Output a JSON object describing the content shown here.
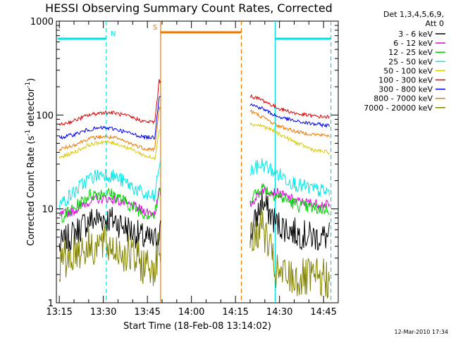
{
  "chart_data": {
    "type": "line",
    "title": "HESSI Observing Summary Count Rates, Corrected",
    "xlabel": "Start Time (18-Feb-08 13:14:02)",
    "ylabel_main": "Corrected Count Rate (s",
    "ylabel_sup1": "-1",
    "ylabel_mid": " detector",
    "ylabel_sup2": "-1",
    "ylabel_end": ")",
    "footer": "12-Mar-2010 17:34",
    "xlim": [
      0,
      96
    ],
    "ylim": [
      1,
      1000
    ],
    "yscale": "log",
    "x_ticks": [
      {
        "value": 1,
        "label": "13:15"
      },
      {
        "value": 16,
        "label": "13:30"
      },
      {
        "value": 31,
        "label": "13:45"
      },
      {
        "value": 46,
        "label": "14:00"
      },
      {
        "value": 61,
        "label": "14:15"
      },
      {
        "value": 76,
        "label": "14:30"
      },
      {
        "value": 91,
        "label": "14:45"
      }
    ],
    "y_ticks": [
      {
        "value": 1,
        "label": "1"
      },
      {
        "value": 10,
        "label": "10"
      },
      {
        "value": 100,
        "label": "100"
      },
      {
        "value": 1000,
        "label": "1000"
      }
    ],
    "legend": {
      "header1": "Det 1,3,4,5,6,9,",
      "header2": "Att 0",
      "entries": [
        "3 - 6 keV",
        "6 - 12 keV",
        "12 - 25 keV",
        "25 - 50 keV",
        "50 - 100 keV",
        "100 - 300 keV",
        "300 - 800 keV",
        "800 - 7000 keV",
        "7000 - 20000 keV"
      ]
    },
    "series": [
      {
        "name": "3 - 6 keV",
        "color": "#000000",
        "noise": 0.16,
        "points": [
          [
            1,
            4
          ],
          [
            6,
            5.5
          ],
          [
            11,
            7.5
          ],
          [
            16,
            8
          ],
          [
            20,
            7.5
          ],
          [
            25,
            6
          ],
          [
            30,
            4.8
          ],
          [
            33.5,
            4.5
          ],
          [
            35,
            6
          ],
          [
            66,
            5
          ],
          [
            70,
            12
          ],
          [
            75,
            7
          ],
          [
            82,
            5.5
          ],
          [
            88,
            5
          ],
          [
            93,
            5
          ]
        ]
      },
      {
        "name": "6 - 12 keV",
        "color": "#e000e0",
        "noise": 0.05,
        "points": [
          [
            1,
            8.5
          ],
          [
            6,
            9.5
          ],
          [
            11,
            12
          ],
          [
            16,
            13
          ],
          [
            20,
            12.5
          ],
          [
            25,
            11
          ],
          [
            30,
            9.5
          ],
          [
            33.5,
            9
          ],
          [
            35,
            15
          ],
          [
            66,
            11
          ],
          [
            70,
            16
          ],
          [
            75,
            15
          ],
          [
            82,
            12
          ],
          [
            88,
            11.5
          ],
          [
            93,
            11
          ]
        ]
      },
      {
        "name": "12 - 25 keV",
        "color": "#00d000",
        "noise": 0.07,
        "points": [
          [
            1,
            8
          ],
          [
            6,
            10
          ],
          [
            11,
            14
          ],
          [
            16,
            15
          ],
          [
            20,
            14
          ],
          [
            25,
            11
          ],
          [
            30,
            9
          ],
          [
            33.5,
            8.5
          ],
          [
            35,
            15
          ],
          [
            66,
            13
          ],
          [
            70,
            17
          ],
          [
            75,
            14
          ],
          [
            82,
            11
          ],
          [
            88,
            10
          ],
          [
            93,
            10
          ]
        ]
      },
      {
        "name": "25 - 50 keV",
        "color": "#00e8e8",
        "noise": 0.08,
        "points": [
          [
            1,
            11
          ],
          [
            6,
            15
          ],
          [
            11,
            21
          ],
          [
            16,
            24
          ],
          [
            20,
            22
          ],
          [
            25,
            18
          ],
          [
            30,
            14
          ],
          [
            33.5,
            13
          ],
          [
            35,
            30
          ],
          [
            66,
            25
          ],
          [
            70,
            30
          ],
          [
            75,
            24
          ],
          [
            82,
            18
          ],
          [
            88,
            16
          ],
          [
            93,
            15
          ]
        ]
      },
      {
        "name": "50 - 100 keV",
        "color": "#d8c800",
        "noise": 0.02,
        "points": [
          [
            1,
            35
          ],
          [
            6,
            40
          ],
          [
            11,
            48
          ],
          [
            16,
            52
          ],
          [
            20,
            50
          ],
          [
            25,
            44
          ],
          [
            30,
            37
          ],
          [
            33.5,
            34
          ],
          [
            35,
            70
          ],
          [
            66,
            80
          ],
          [
            70,
            77
          ],
          [
            75,
            65
          ],
          [
            82,
            50
          ],
          [
            88,
            42
          ],
          [
            93,
            40
          ]
        ]
      },
      {
        "name": "100 - 300 keV",
        "color": "#e00000",
        "noise": 0.02,
        "points": [
          [
            1,
            78
          ],
          [
            6,
            87
          ],
          [
            11,
            100
          ],
          [
            16,
            107
          ],
          [
            20,
            105
          ],
          [
            25,
            96
          ],
          [
            30,
            85
          ],
          [
            33.5,
            84
          ],
          [
            35,
            230
          ],
          [
            66,
            160
          ],
          [
            70,
            145
          ],
          [
            75,
            120
          ],
          [
            82,
            103
          ],
          [
            88,
            97
          ],
          [
            93,
            95
          ]
        ]
      },
      {
        "name": "300 - 800 keV",
        "color": "#0000e8",
        "noise": 0.02,
        "points": [
          [
            1,
            57
          ],
          [
            6,
            62
          ],
          [
            11,
            70
          ],
          [
            16,
            73
          ],
          [
            20,
            71
          ],
          [
            25,
            64
          ],
          [
            30,
            58
          ],
          [
            33.5,
            58
          ],
          [
            35,
            160
          ],
          [
            66,
            130
          ],
          [
            70,
            118
          ],
          [
            75,
            97
          ],
          [
            82,
            85
          ],
          [
            88,
            80
          ],
          [
            93,
            77
          ]
        ]
      },
      {
        "name": "800 - 7000 keV",
        "color": "#f07800",
        "noise": 0.02,
        "points": [
          [
            1,
            43
          ],
          [
            6,
            48
          ],
          [
            11,
            56
          ],
          [
            16,
            59
          ],
          [
            20,
            57
          ],
          [
            25,
            50
          ],
          [
            30,
            44
          ],
          [
            33.5,
            43
          ],
          [
            35,
            120
          ],
          [
            66,
            110
          ],
          [
            70,
            96
          ],
          [
            75,
            78
          ],
          [
            82,
            66
          ],
          [
            88,
            62
          ],
          [
            93,
            60
          ]
        ]
      },
      {
        "name": "7000 - 20000 keV",
        "color": "#808000",
        "noise": 0.22,
        "points": [
          [
            1,
            2.5
          ],
          [
            6,
            3.5
          ],
          [
            11,
            4
          ],
          [
            16,
            4.2
          ],
          [
            20,
            3.8
          ],
          [
            25,
            3.2
          ],
          [
            30,
            2.5
          ],
          [
            33.5,
            2.5
          ],
          [
            35,
            4
          ],
          [
            66,
            4.2
          ],
          [
            70,
            7
          ],
          [
            75,
            2
          ],
          [
            82,
            1.8
          ],
          [
            88,
            1.8
          ],
          [
            93,
            1.8
          ]
        ]
      }
    ],
    "vlines": [
      {
        "x": 35.5,
        "color": "#f07800",
        "style": "solid"
      },
      {
        "x": 63,
        "color": "#f07800",
        "style": "dashed"
      },
      {
        "x": 17,
        "color": "#00e0e0",
        "style": "dashed"
      },
      {
        "x": 74.5,
        "color": "#00e0e0",
        "style": "solid"
      },
      {
        "x": 93.5,
        "color": "#00e0e0",
        "style": "dashed"
      }
    ],
    "bars": [
      {
        "x0": 0.5,
        "x1": 17,
        "y": 650,
        "color": "#00e0e0",
        "label": "N"
      },
      {
        "x0": 35.5,
        "x1": 63,
        "y": 760,
        "color": "#f07800",
        "label": "S"
      },
      {
        "x0": 74.5,
        "x1": 93.5,
        "y": 650,
        "color": "#00e0e0",
        "label": ""
      }
    ],
    "gaps": [
      [
        35.7,
        66
      ]
    ]
  }
}
